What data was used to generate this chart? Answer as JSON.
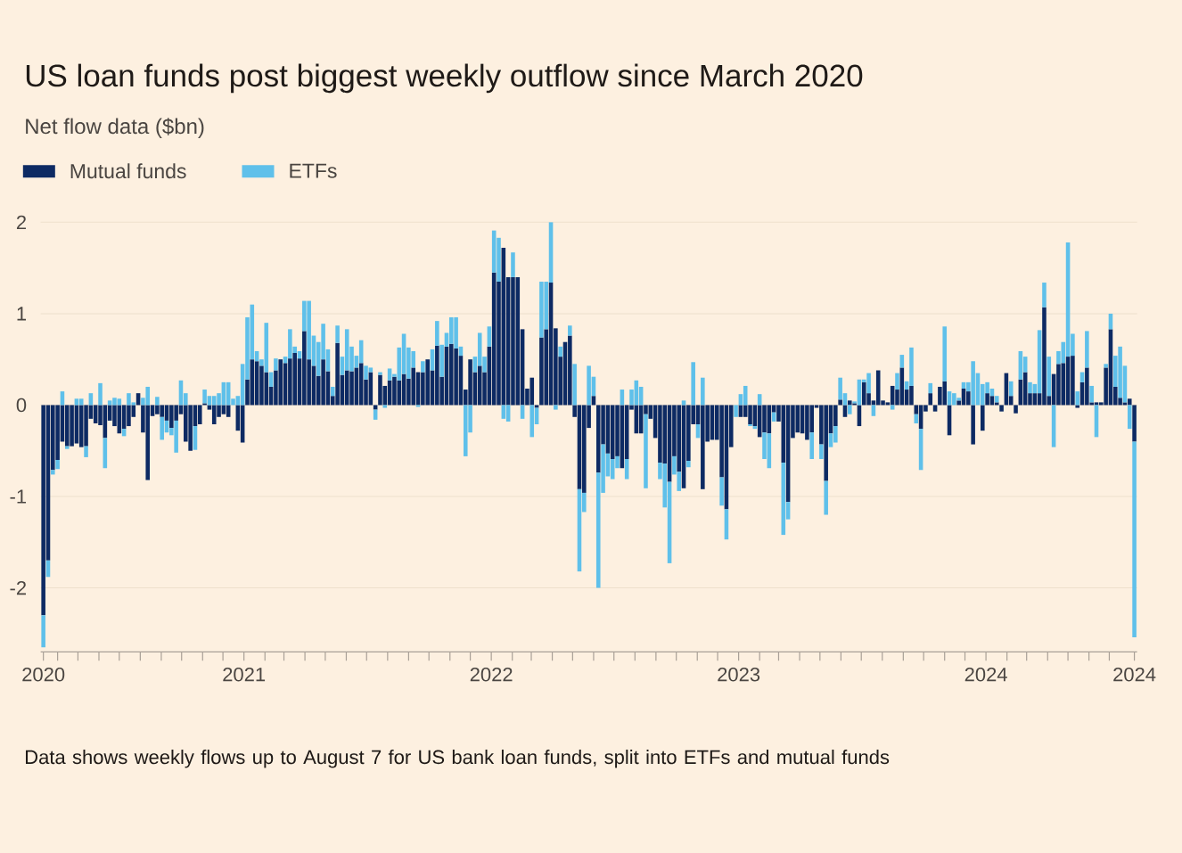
{
  "chart_data": {
    "type": "bar",
    "stacked": true,
    "title": "US loan funds post biggest weekly outflow since March 2020",
    "subtitle": "Net flow data ($bn)",
    "annotations": [
      "Data shows weekly flows up to August 7 for US bank loan funds, split into ETFs and mutual funds"
    ],
    "legend": "top left",
    "grid": "y",
    "xlim": [
      "2020-03-07",
      "2024-08-11"
    ],
    "ylim": [
      -2.7,
      2
    ],
    "yticks": [
      -2,
      -1,
      0,
      1,
      2
    ],
    "xticks": [
      {
        "value": "2020-03-11",
        "label": "2020"
      },
      {
        "value": "2020-04-01",
        "label": null
      },
      {
        "value": "2020-05-01",
        "label": null
      },
      {
        "value": "2020-06-01",
        "label": null
      },
      {
        "value": "2020-07-01",
        "label": null
      },
      {
        "value": "2020-08-01",
        "label": null
      },
      {
        "value": "2020-09-01",
        "label": null
      },
      {
        "value": "2020-10-01",
        "label": null
      },
      {
        "value": "2020-11-01",
        "label": null
      },
      {
        "value": "2020-12-01",
        "label": null
      },
      {
        "value": "2021-01-01",
        "label": "2021"
      },
      {
        "value": "2021-02-01",
        "label": null
      },
      {
        "value": "2021-03-01",
        "label": null
      },
      {
        "value": "2021-04-01",
        "label": null
      },
      {
        "value": "2021-05-01",
        "label": null
      },
      {
        "value": "2021-06-01",
        "label": null
      },
      {
        "value": "2021-07-01",
        "label": null
      },
      {
        "value": "2021-08-01",
        "label": null
      },
      {
        "value": "2021-09-01",
        "label": null
      },
      {
        "value": "2021-10-01",
        "label": null
      },
      {
        "value": "2021-11-01",
        "label": null
      },
      {
        "value": "2021-12-01",
        "label": null
      },
      {
        "value": "2022-01-01",
        "label": "2022"
      },
      {
        "value": "2022-02-01",
        "label": null
      },
      {
        "value": "2022-03-01",
        "label": null
      },
      {
        "value": "2022-04-01",
        "label": null
      },
      {
        "value": "2022-05-01",
        "label": null
      },
      {
        "value": "2022-06-01",
        "label": null
      },
      {
        "value": "2022-07-01",
        "label": null
      },
      {
        "value": "2022-08-01",
        "label": null
      },
      {
        "value": "2022-09-01",
        "label": null
      },
      {
        "value": "2022-10-01",
        "label": null
      },
      {
        "value": "2022-11-01",
        "label": null
      },
      {
        "value": "2022-12-01",
        "label": null
      },
      {
        "value": "2023-01-01",
        "label": "2023"
      },
      {
        "value": "2023-02-01",
        "label": null
      },
      {
        "value": "2023-03-01",
        "label": null
      },
      {
        "value": "2023-04-01",
        "label": null
      },
      {
        "value": "2023-05-01",
        "label": null
      },
      {
        "value": "2023-06-01",
        "label": null
      },
      {
        "value": "2023-07-01",
        "label": null
      },
      {
        "value": "2023-08-01",
        "label": null
      },
      {
        "value": "2023-09-01",
        "label": null
      },
      {
        "value": "2023-10-01",
        "label": null
      },
      {
        "value": "2023-11-01",
        "label": null
      },
      {
        "value": "2023-12-01",
        "label": null
      },
      {
        "value": "2024-01-01",
        "label": "2024"
      },
      {
        "value": "2024-02-01",
        "label": null
      },
      {
        "value": "2024-03-01",
        "label": null
      },
      {
        "value": "2024-04-01",
        "label": null
      },
      {
        "value": "2024-05-01",
        "label": null
      },
      {
        "value": "2024-06-01",
        "label": null
      },
      {
        "value": "2024-07-01",
        "label": null
      },
      {
        "value": "2024-08-07",
        "label": "2024"
      }
    ],
    "x": [
      "2020-03-11",
      "2020-03-18",
      "2020-03-25",
      "2020-04-01",
      "2020-04-08",
      "2020-04-15",
      "2020-04-22",
      "2020-04-29",
      "2020-05-06",
      "2020-05-13",
      "2020-05-20",
      "2020-05-27",
      "2020-06-03",
      "2020-06-10",
      "2020-06-17",
      "2020-06-24",
      "2020-07-01",
      "2020-07-08",
      "2020-07-15",
      "2020-07-22",
      "2020-07-29",
      "2020-08-05",
      "2020-08-12",
      "2020-08-19",
      "2020-08-26",
      "2020-09-02",
      "2020-09-09",
      "2020-09-16",
      "2020-09-23",
      "2020-09-30",
      "2020-10-07",
      "2020-10-14",
      "2020-10-21",
      "2020-10-28",
      "2020-11-04",
      "2020-11-11",
      "2020-11-18",
      "2020-11-25",
      "2020-12-02",
      "2020-12-09",
      "2020-12-16",
      "2020-12-23",
      "2020-12-30",
      "2021-01-06",
      "2021-01-13",
      "2021-01-20",
      "2021-01-27",
      "2021-02-03",
      "2021-02-10",
      "2021-02-17",
      "2021-02-24",
      "2021-03-03",
      "2021-03-10",
      "2021-03-17",
      "2021-03-24",
      "2021-03-31",
      "2021-04-07",
      "2021-04-14",
      "2021-04-21",
      "2021-04-28",
      "2021-05-05",
      "2021-05-12",
      "2021-05-19",
      "2021-05-26",
      "2021-06-02",
      "2021-06-09",
      "2021-06-16",
      "2021-06-23",
      "2021-06-30",
      "2021-07-07",
      "2021-07-14",
      "2021-07-21",
      "2021-07-28",
      "2021-08-04",
      "2021-08-11",
      "2021-08-18",
      "2021-08-25",
      "2021-09-01",
      "2021-09-08",
      "2021-09-15",
      "2021-09-22",
      "2021-09-29",
      "2021-10-06",
      "2021-10-13",
      "2021-10-20",
      "2021-10-27",
      "2021-11-03",
      "2021-11-10",
      "2021-11-17",
      "2021-11-24",
      "2021-12-01",
      "2021-12-08",
      "2021-12-15",
      "2021-12-22",
      "2021-12-29",
      "2022-01-05",
      "2022-01-12",
      "2022-01-19",
      "2022-01-26",
      "2022-02-02",
      "2022-02-09",
      "2022-02-16",
      "2022-02-23",
      "2022-03-02",
      "2022-03-09",
      "2022-03-16",
      "2022-03-23",
      "2022-03-30",
      "2022-04-06",
      "2022-04-13",
      "2022-04-20",
      "2022-04-27",
      "2022-05-04",
      "2022-05-11",
      "2022-05-18",
      "2022-05-25",
      "2022-06-01",
      "2022-06-08",
      "2022-06-15",
      "2022-06-22",
      "2022-06-29",
      "2022-07-06",
      "2022-07-13",
      "2022-07-20",
      "2022-07-27",
      "2022-08-03",
      "2022-08-10",
      "2022-08-17",
      "2022-08-24",
      "2022-08-31",
      "2022-09-07",
      "2022-09-14",
      "2022-09-21",
      "2022-09-28",
      "2022-10-05",
      "2022-10-12",
      "2022-10-19",
      "2022-10-26",
      "2022-11-02",
      "2022-11-09",
      "2022-11-16",
      "2022-11-23",
      "2022-11-30",
      "2022-12-07",
      "2022-12-14",
      "2022-12-21",
      "2022-12-28",
      "2023-01-04",
      "2023-01-11",
      "2023-01-18",
      "2023-01-25",
      "2023-02-01",
      "2023-02-08",
      "2023-02-15",
      "2023-02-22",
      "2023-03-01",
      "2023-03-08",
      "2023-03-15",
      "2023-03-22",
      "2023-03-29",
      "2023-04-05",
      "2023-04-12",
      "2023-04-19",
      "2023-04-26",
      "2023-05-03",
      "2023-05-10",
      "2023-05-17",
      "2023-05-24",
      "2023-05-31",
      "2023-06-07",
      "2023-06-14",
      "2023-06-21",
      "2023-06-28",
      "2023-07-05",
      "2023-07-12",
      "2023-07-19",
      "2023-07-26",
      "2023-08-02",
      "2023-08-09",
      "2023-08-16",
      "2023-08-23",
      "2023-08-30",
      "2023-09-06",
      "2023-09-13",
      "2023-09-20",
      "2023-09-27",
      "2023-10-04",
      "2023-10-11",
      "2023-10-18",
      "2023-10-25",
      "2023-11-01",
      "2023-11-08",
      "2023-11-15",
      "2023-11-22",
      "2023-11-29",
      "2023-12-06",
      "2023-12-13",
      "2023-12-20",
      "2023-12-27",
      "2024-01-03",
      "2024-01-10",
      "2024-01-17",
      "2024-01-24",
      "2024-01-31",
      "2024-02-07",
      "2024-02-14",
      "2024-02-21",
      "2024-02-28",
      "2024-03-06",
      "2024-03-13",
      "2024-03-20",
      "2024-03-27",
      "2024-04-03",
      "2024-04-10",
      "2024-04-17",
      "2024-04-24",
      "2024-05-01",
      "2024-05-08",
      "2024-05-15",
      "2024-05-22",
      "2024-05-29",
      "2024-06-05",
      "2024-06-12",
      "2024-06-19",
      "2024-06-26",
      "2024-07-03",
      "2024-07-10",
      "2024-07-17",
      "2024-07-24",
      "2024-07-31",
      "2024-08-07"
    ],
    "series": [
      {
        "name": "Mutual funds",
        "color": "#0d2a63",
        "values": [
          -2.3,
          -1.7,
          -0.71,
          -0.6,
          -0.4,
          -0.45,
          -0.45,
          -0.42,
          -0.46,
          -0.45,
          -0.15,
          -0.2,
          -0.22,
          -0.36,
          -0.17,
          -0.23,
          -0.31,
          -0.26,
          -0.23,
          -0.13,
          0.13,
          -0.3,
          -0.82,
          -0.12,
          -0.1,
          -0.13,
          -0.17,
          -0.25,
          -0.17,
          -0.1,
          -0.4,
          -0.5,
          -0.23,
          -0.21,
          0.02,
          -0.05,
          -0.21,
          -0.13,
          -0.1,
          -0.13,
          0,
          -0.28,
          -0.41,
          0.28,
          0.5,
          0.48,
          0.43,
          0.36,
          0.2,
          0.38,
          0.5,
          0.46,
          0.51,
          0.57,
          0.51,
          0.81,
          0.5,
          0.43,
          0.32,
          0.5,
          0.37,
          0.1,
          0.68,
          0.33,
          0.38,
          0.37,
          0.41,
          0.46,
          0.28,
          0.36,
          -0.05,
          0.33,
          0.21,
          0.27,
          0.31,
          0.27,
          0.34,
          0.29,
          0.41,
          0.36,
          0.36,
          0.5,
          0.38,
          0.65,
          0.31,
          0.64,
          0.67,
          0.62,
          0.54,
          0.17,
          0.5,
          0.36,
          0.43,
          0.36,
          0.64,
          1.45,
          1.35,
          1.72,
          1.4,
          1.4,
          1.4,
          0.83,
          0.18,
          0.3,
          -0.03,
          0.74,
          0.83,
          1.34,
          0.84,
          0.53,
          0.69,
          0.76,
          -0.13,
          -0.92,
          -0.96,
          -0.25,
          0.1,
          -0.74,
          -0.43,
          -0.53,
          -0.59,
          -0.56,
          -0.69,
          -0.59,
          -0.05,
          -0.31,
          -0.31,
          -0.1,
          -0.15,
          -0.36,
          -0.63,
          -0.64,
          -0.84,
          -0.56,
          -0.73,
          -0.91,
          -0.61,
          -0.21,
          -0.21,
          -0.92,
          -0.4,
          -0.38,
          -0.38,
          -0.79,
          -1.14,
          -0.46,
          0,
          -0.13,
          -0.13,
          -0.21,
          -0.23,
          -0.35,
          -0.3,
          -0.31,
          -0.08,
          -0.18,
          -0.63,
          -1.06,
          -0.36,
          -0.3,
          -0.31,
          -0.38,
          -0.3,
          -0.03,
          -0.43,
          -0.83,
          -0.31,
          -0.23,
          0.06,
          -0.13,
          0.05,
          0.02,
          -0.23,
          0.25,
          0.13,
          0.05,
          0.38,
          0.05,
          0.03,
          0.21,
          0.17,
          0.41,
          0.17,
          0.21,
          -0.1,
          -0.26,
          -0.07,
          0.13,
          -0.07,
          0.2,
          0.26,
          -0.33,
          0,
          0.05,
          0.18,
          0.15,
          -0.43,
          0,
          -0.28,
          0.13,
          0.1,
          0.03,
          -0.07,
          0.35,
          0.1,
          -0.09,
          0.28,
          0.36,
          0.13,
          0.13,
          0.13,
          1.07,
          0.1,
          0.34,
          0.45,
          0.46,
          0.53,
          0.54,
          -0.03,
          0.25,
          0.41,
          0.03,
          0.03,
          0.03,
          0.41,
          0.83,
          0.2,
          0.08,
          0.03,
          0.07,
          -0.4
        ]
      },
      {
        "name": "ETFs",
        "color": "#5fc0ea",
        "values": [
          -0.35,
          -0.18,
          -0.05,
          -0.1,
          0.15,
          -0.03,
          0,
          0.07,
          0.07,
          -0.12,
          0.13,
          0,
          0.24,
          -0.33,
          0.05,
          0.08,
          0.07,
          -0.08,
          0.13,
          0.03,
          0,
          0.08,
          0.2,
          0,
          0.09,
          -0.25,
          -0.13,
          -0.08,
          -0.35,
          0.27,
          0.13,
          0,
          -0.26,
          0,
          0.15,
          0.1,
          0.1,
          0.13,
          0.25,
          0.25,
          0.07,
          0.1,
          0.45,
          0.68,
          0.6,
          0.11,
          0.07,
          0.54,
          0.16,
          0.13,
          0,
          0.07,
          0.32,
          0.07,
          0.08,
          0.33,
          0.64,
          0.33,
          0.37,
          0.39,
          0.24,
          0.1,
          0.19,
          0.2,
          0.45,
          0.27,
          0.13,
          0.25,
          0.15,
          0.05,
          -0.11,
          0.03,
          -0.03,
          0.13,
          0.03,
          0.36,
          0.44,
          0.34,
          0.18,
          -0.02,
          0.12,
          0,
          0.23,
          0.27,
          0.35,
          0.15,
          0.29,
          0.34,
          0.1,
          -0.56,
          -0.3,
          0.17,
          0.36,
          0.17,
          0.22,
          0.46,
          0.48,
          -0.15,
          -0.18,
          0.27,
          0,
          -0.15,
          0,
          -0.35,
          -0.18,
          0.61,
          0.52,
          0.66,
          -0.05,
          0.11,
          0,
          0.11,
          0.45,
          -0.9,
          -0.21,
          0.43,
          0.21,
          -1.26,
          -0.53,
          -0.25,
          -0.22,
          -0.13,
          0.17,
          -0.22,
          0.17,
          0.27,
          0.2,
          -0.81,
          0,
          0,
          -0.18,
          -0.48,
          -0.89,
          -0.2,
          -0.21,
          0.05,
          -0.07,
          0.47,
          -0.15,
          0.3,
          0,
          0,
          0,
          -0.31,
          -0.33,
          0,
          -0.13,
          0.12,
          0.21,
          -0.02,
          -0.03,
          0.12,
          -0.29,
          -0.38,
          -0.1,
          0,
          -0.79,
          -0.19,
          0,
          0,
          0,
          0,
          -0.29,
          0,
          -0.16,
          -0.37,
          -0.15,
          -0.18,
          0.24,
          0.13,
          -0.1,
          0.02,
          0.28,
          0.03,
          0.22,
          -0.12,
          0,
          0,
          0,
          -0.05,
          0.18,
          0.14,
          0.09,
          0.42,
          -0.1,
          -0.45,
          0,
          0.11,
          0,
          0,
          0.6,
          0.15,
          0.13,
          0.03,
          0.07,
          0.1,
          0.48,
          0.35,
          0.23,
          0.12,
          0.08,
          0.07,
          0,
          0,
          0.16,
          0,
          0.31,
          0.17,
          0.12,
          0.1,
          0.69,
          0.27,
          0.43,
          -0.46,
          0.14,
          0.23,
          1.25,
          0.24,
          0.15,
          0.11,
          0.4,
          0.18,
          -0.35,
          0,
          0.04,
          0.17,
          0.34,
          0.56,
          0.4,
          -0.26,
          -2.14
        ]
      }
    ]
  }
}
